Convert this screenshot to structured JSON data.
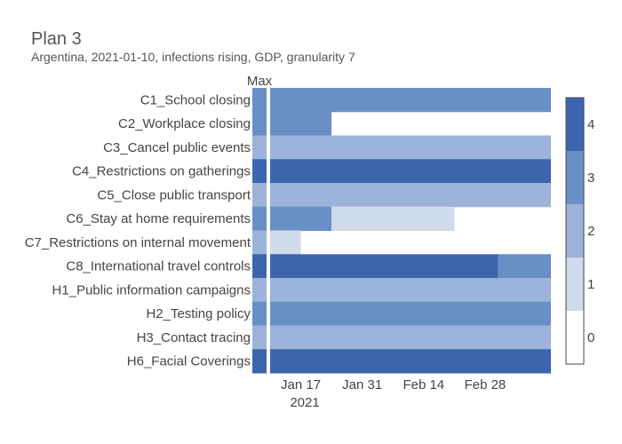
{
  "chart_data": {
    "type": "heatmap",
    "title": "Plan 3",
    "subtitle": "Argentina, 2021-01-10, infections rising, GDP, granularity 7",
    "max_column_label": "Max",
    "x_ticks": [
      "Jan 17",
      "Jan 31",
      "Feb 14",
      "Feb 28"
    ],
    "x_year_label": "2021",
    "x_range": [
      "2021-01-10",
      "2021-03-15"
    ],
    "colorbar": {
      "ticks": [
        "0",
        "1",
        "2",
        "3",
        "4"
      ],
      "range": [
        0,
        4
      ]
    },
    "colors": [
      "#ffffff",
      "#cfdaeb",
      "#9bb3d9",
      "#6a8fc6",
      "#3b66ae"
    ],
    "rows": [
      {
        "name": "C1_School closing",
        "max": 3,
        "segments": [
          {
            "start": "2021-01-10",
            "end": "2021-03-15",
            "value": 3
          }
        ]
      },
      {
        "name": "C2_Workplace closing",
        "max": 3,
        "segments": [
          {
            "start": "2021-01-10",
            "end": "2021-01-24",
            "value": 3
          }
        ]
      },
      {
        "name": "C3_Cancel public events",
        "max": 2,
        "segments": [
          {
            "start": "2021-01-10",
            "end": "2021-03-15",
            "value": 2
          }
        ]
      },
      {
        "name": "C4_Restrictions on gatherings",
        "max": 4,
        "segments": [
          {
            "start": "2021-01-10",
            "end": "2021-03-15",
            "value": 4
          }
        ]
      },
      {
        "name": "C5_Close public transport",
        "max": 2,
        "segments": [
          {
            "start": "2021-01-10",
            "end": "2021-03-15",
            "value": 2
          }
        ]
      },
      {
        "name": "C6_Stay at home requirements",
        "max": 3,
        "segments": [
          {
            "start": "2021-01-10",
            "end": "2021-01-24",
            "value": 3
          },
          {
            "start": "2021-01-24",
            "end": "2021-02-21",
            "value": 1
          }
        ]
      },
      {
        "name": "C7_Restrictions on internal movement",
        "max": 2,
        "segments": [
          {
            "start": "2021-01-10",
            "end": "2021-01-17",
            "value": 1
          }
        ]
      },
      {
        "name": "C8_International travel controls",
        "max": 4,
        "segments": [
          {
            "start": "2021-01-10",
            "end": "2021-03-03",
            "value": 4
          },
          {
            "start": "2021-03-03",
            "end": "2021-03-15",
            "value": 3
          }
        ]
      },
      {
        "name": "H1_Public information campaigns",
        "max": 2,
        "segments": [
          {
            "start": "2021-01-10",
            "end": "2021-03-15",
            "value": 2
          }
        ]
      },
      {
        "name": "H2_Testing policy",
        "max": 3,
        "segments": [
          {
            "start": "2021-01-10",
            "end": "2021-03-15",
            "value": 3
          }
        ]
      },
      {
        "name": "H3_Contact tracing",
        "max": 2,
        "segments": [
          {
            "start": "2021-01-10",
            "end": "2021-03-15",
            "value": 2
          }
        ]
      },
      {
        "name": "H6_Facial Coverings",
        "max": 4,
        "segments": [
          {
            "start": "2021-01-10",
            "end": "2021-03-15",
            "value": 4
          }
        ]
      }
    ]
  }
}
